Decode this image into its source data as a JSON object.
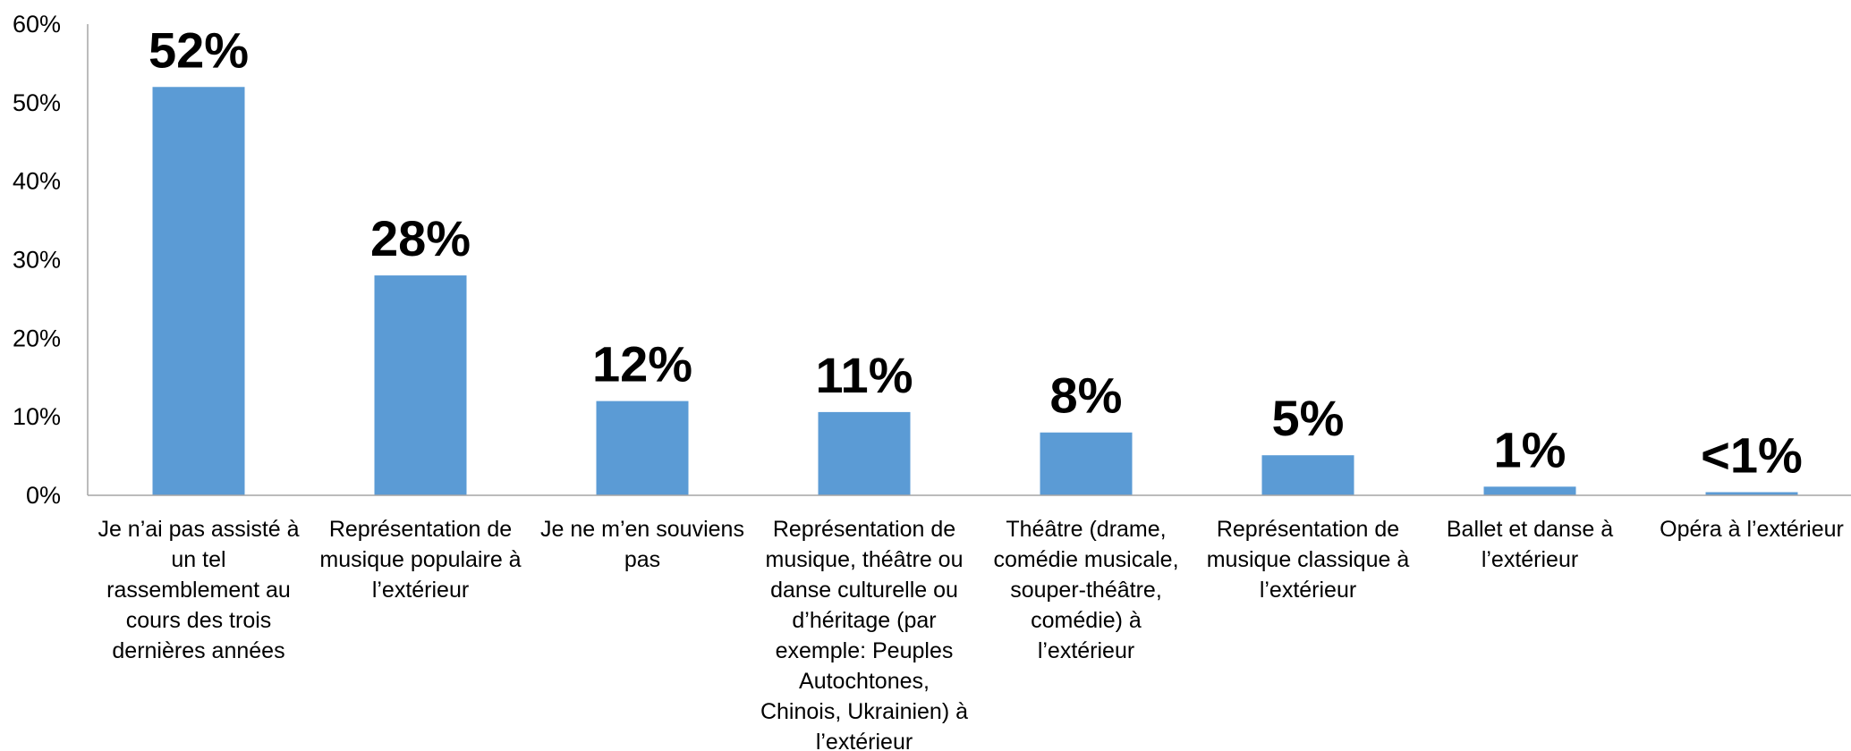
{
  "chart_data": {
    "type": "bar",
    "title": "",
    "xlabel": "",
    "ylabel": "",
    "ylim": [
      0,
      60
    ],
    "yticks": [
      "0%",
      "10%",
      "20%",
      "30%",
      "40%",
      "50%",
      "60%"
    ],
    "grid": false,
    "legend": "none",
    "bar_color": "#5b9bd5",
    "categories": [
      [
        "Je n’ai pas assisté à",
        "un tel",
        "rassemblement au",
        "cours des trois",
        "dernières années"
      ],
      [
        "Représentation de",
        "musique populaire à",
        "l’extérieur"
      ],
      [
        "Je ne m’en souviens",
        "pas"
      ],
      [
        "Représentation de",
        "musique, théâtre ou",
        "danse culturelle ou",
        "d’héritage (par",
        "exemple: Peuples",
        "Autochtones,",
        "Chinois, Ukrainien) à",
        "l’extérieur"
      ],
      [
        "Théâtre (drame,",
        "comédie musicale,",
        "souper-théâtre,",
        "comédie) à",
        "l’extérieur"
      ],
      [
        "Représentation de",
        "musique classique à",
        "l’extérieur"
      ],
      [
        "Ballet et danse à",
        "l’extérieur"
      ],
      [
        "Opéra à l’extérieur"
      ]
    ],
    "values": [
      52,
      28,
      12,
      10.6,
      8,
      5.1,
      1.1,
      0.4
    ],
    "data_labels": [
      "52%",
      "28%",
      "12%",
      "11%",
      "8%",
      "5%",
      "1%",
      "<1%"
    ]
  }
}
